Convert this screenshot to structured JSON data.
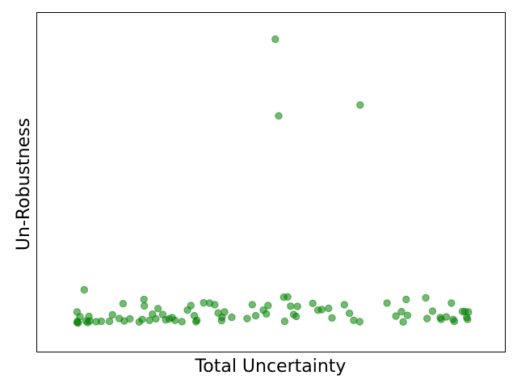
{
  "chart_data": {
    "type": "scatter",
    "title": "",
    "xlabel": "Total Uncertainty",
    "ylabel": "Un-Robustness",
    "xticks": [],
    "yticks": [],
    "grid": false,
    "xlim": [
      0,
      100
    ],
    "ylim": [
      0,
      100
    ],
    "color": "#008000",
    "marker": "circle",
    "alpha": 0.55,
    "series": [
      {
        "points": [
          [
            4.5,
            4.6
          ],
          [
            4.5,
            8.0
          ],
          [
            4.6,
            5.0
          ],
          [
            4.8,
            4.5
          ],
          [
            5.2,
            6.5
          ],
          [
            6.2,
            15.2
          ],
          [
            6.6,
            5.1
          ],
          [
            7.0,
            4.6
          ],
          [
            7.3,
            6.6
          ],
          [
            7.5,
            5.1
          ],
          [
            9.0,
            4.9
          ],
          [
            10.2,
            5.0
          ],
          [
            12.1,
            5.0
          ],
          [
            12.8,
            7.1
          ],
          [
            14.4,
            5.9
          ],
          [
            15.3,
            10.7
          ],
          [
            15.6,
            5.1
          ],
          [
            16.9,
            5.8
          ],
          [
            19.1,
            4.8
          ],
          [
            19.8,
            5.6
          ],
          [
            20.2,
            12.1
          ],
          [
            20.3,
            10.0
          ],
          [
            21.5,
            5.3
          ],
          [
            22.2,
            7.3
          ],
          [
            23.0,
            5.8
          ],
          [
            23.5,
            9.1
          ],
          [
            24.6,
            7.2
          ],
          [
            25.3,
            5.5
          ],
          [
            26.1,
            5.8
          ],
          [
            26.8,
            6.2
          ],
          [
            27.5,
            5.3
          ],
          [
            29.1,
            4.9
          ],
          [
            30.4,
            8.6
          ],
          [
            31.2,
            10.1
          ],
          [
            32.0,
            6.8
          ],
          [
            32.4,
            4.9
          ],
          [
            32.6,
            5.3
          ],
          [
            34.2,
            11.0
          ],
          [
            35.6,
            10.9
          ],
          [
            36.8,
            10.4
          ],
          [
            37.6,
            7.7
          ],
          [
            38.4,
            5.2
          ],
          [
            38.5,
            6.3
          ],
          [
            39.1,
            8.0
          ],
          [
            40.8,
            6.3
          ],
          [
            44.4,
            5.9
          ],
          [
            45.6,
            10.4
          ],
          [
            46.4,
            6.8
          ],
          [
            48.2,
            8.6
          ],
          [
            48.9,
            7.4
          ],
          [
            49.3,
            10.1
          ],
          [
            51.0,
            96.3
          ],
          [
            51.8,
            71.5
          ],
          [
            53.0,
            12.8
          ],
          [
            53.2,
            5.0
          ],
          [
            53.9,
            12.9
          ],
          [
            54.6,
            9.9
          ],
          [
            55.3,
            7.2
          ],
          [
            55.9,
            6.6
          ],
          [
            56.2,
            9.8
          ],
          [
            59.8,
            10.8
          ],
          [
            61.0,
            8.6
          ],
          [
            61.9,
            8.8
          ],
          [
            63.5,
            9.2
          ],
          [
            64.3,
            6.1
          ],
          [
            67.2,
            10.4
          ],
          [
            68.4,
            7.6
          ],
          [
            69.4,
            5.3
          ],
          [
            70.8,
            4.9
          ],
          [
            70.9,
            75.0
          ],
          [
            77.2,
            10.9
          ],
          [
            79.3,
            6.7
          ],
          [
            80.6,
            8.1
          ],
          [
            81.0,
            4.8
          ],
          [
            81.7,
            12.1
          ],
          [
            82.0,
            6.9
          ],
          [
            86.3,
            12.6
          ],
          [
            86.6,
            5.9
          ],
          [
            87.9,
            8.3
          ],
          [
            89.7,
            6.2
          ],
          [
            89.9,
            5.6
          ],
          [
            91.1,
            6.4
          ],
          [
            92.3,
            10.9
          ],
          [
            92.7,
            5.6
          ],
          [
            93.0,
            5.0
          ],
          [
            94.9,
            8.2
          ],
          [
            95.9,
            6.3
          ],
          [
            96.1,
            5.6
          ],
          [
            96.3,
            8.0
          ],
          [
            95.5,
            8.1
          ]
        ]
      }
    ]
  }
}
